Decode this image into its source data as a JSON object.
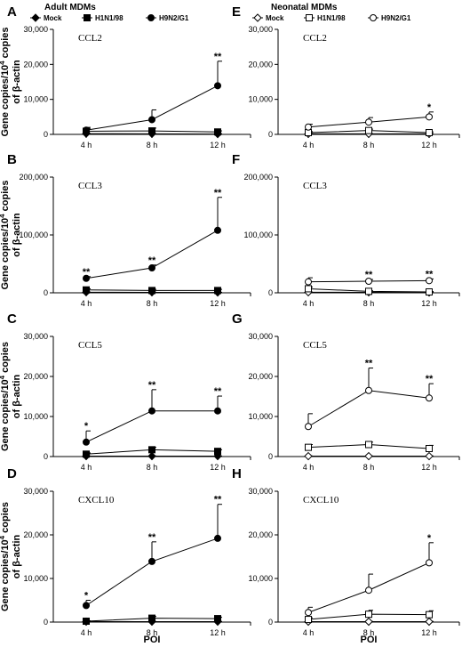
{
  "headers": {
    "left": "Adult MDMs",
    "right": "Neonatal MDMs"
  },
  "x_axis_label": "POI",
  "y_axis_label_main": "Gene copies/10",
  "y_axis_label_sup": "4",
  "y_axis_label_tail": " copies",
  "y_axis_label_line2": "of β-actin",
  "legend": {
    "items": [
      {
        "label": "Mock",
        "marker": "diamond"
      },
      {
        "label": "H1N1/98",
        "marker": "square"
      },
      {
        "label": "H9N2/G1",
        "marker": "circle"
      }
    ]
  },
  "chart_data": [
    {
      "panel": "A",
      "title": "CCL2",
      "group": "adult",
      "fill": "filled",
      "type": "line",
      "categories": [
        "4 h",
        "8 h",
        "12 h"
      ],
      "yticks": [
        "0",
        "10,000",
        "20,000",
        "30,000"
      ],
      "ylim": [
        0,
        30000
      ],
      "series": [
        {
          "name": "Mock",
          "values": [
            200,
            150,
            100
          ],
          "err": [
            100,
            100,
            100
          ]
        },
        {
          "name": "H1N1/98",
          "values": [
            900,
            1000,
            700
          ],
          "err": [
            700,
            800,
            300
          ]
        },
        {
          "name": "H9N2/G1",
          "values": [
            1200,
            4200,
            13900
          ],
          "err": [
            800,
            2800,
            7000
          ]
        }
      ],
      "annotations": [
        "",
        "",
        "**"
      ]
    },
    {
      "panel": "B",
      "title": "CCL3",
      "group": "adult",
      "fill": "filled",
      "type": "line",
      "categories": [
        "4 h",
        "8 h",
        "12 h"
      ],
      "yticks": [
        "0",
        "100,000",
        "200,000"
      ],
      "ylim": [
        0,
        200000
      ],
      "series": [
        {
          "name": "Mock",
          "values": [
            1000,
            800,
            600
          ],
          "err": [
            500,
            400,
            300
          ]
        },
        {
          "name": "H1N1/98",
          "values": [
            5000,
            4000,
            4000
          ],
          "err": [
            2000,
            2000,
            2000
          ]
        },
        {
          "name": "H9N2/G1",
          "values": [
            25000,
            43000,
            108000
          ],
          "err": [
            3000,
            5000,
            57000
          ]
        }
      ],
      "annotations": [
        "**",
        "**",
        "**"
      ]
    },
    {
      "panel": "C",
      "title": "CCL5",
      "group": "adult",
      "fill": "filled",
      "type": "line",
      "categories": [
        "4 h",
        "8 h",
        "12 h"
      ],
      "yticks": [
        "0",
        "10,000",
        "20,000",
        "30,000"
      ],
      "ylim": [
        0,
        30000
      ],
      "series": [
        {
          "name": "Mock",
          "values": [
            100,
            100,
            100
          ],
          "err": [
            50,
            50,
            50
          ]
        },
        {
          "name": "H1N1/98",
          "values": [
            600,
            1700,
            1300
          ],
          "err": [
            300,
            600,
            400
          ]
        },
        {
          "name": "H9N2/G1",
          "values": [
            3600,
            11400,
            11400
          ],
          "err": [
            2800,
            5300,
            3700
          ]
        }
      ],
      "annotations": [
        "*",
        "**",
        "**"
      ]
    },
    {
      "panel": "D",
      "title": "CXCL10",
      "group": "adult",
      "fill": "filled",
      "type": "line",
      "categories": [
        "4 h",
        "8 h",
        "12 h"
      ],
      "yticks": [
        "0",
        "10,000",
        "20,000",
        "30,000"
      ],
      "ylim": [
        0,
        30000
      ],
      "series": [
        {
          "name": "Mock",
          "values": [
            100,
            100,
            100
          ],
          "err": [
            50,
            50,
            50
          ]
        },
        {
          "name": "H1N1/98",
          "values": [
            200,
            900,
            800
          ],
          "err": [
            100,
            400,
            300
          ]
        },
        {
          "name": "H9N2/G1",
          "values": [
            3800,
            13900,
            19200
          ],
          "err": [
            1200,
            4500,
            7800
          ]
        }
      ],
      "annotations": [
        "*",
        "**",
        "**"
      ]
    },
    {
      "panel": "E",
      "title": "CCL2",
      "group": "neonatal",
      "fill": "open",
      "type": "line",
      "categories": [
        "4 h",
        "8 h",
        "12 h"
      ],
      "yticks": [
        "0",
        "10,000",
        "20,000",
        "30,000"
      ],
      "ylim": [
        0,
        30000
      ],
      "series": [
        {
          "name": "Mock",
          "values": [
            150,
            150,
            150
          ],
          "err": [
            50,
            50,
            50
          ]
        },
        {
          "name": "H1N1/98",
          "values": [
            500,
            1100,
            500
          ],
          "err": [
            300,
            400,
            200
          ]
        },
        {
          "name": "H9N2/G1",
          "values": [
            2100,
            3500,
            5000
          ],
          "err": [
            800,
            1300,
            1400
          ]
        }
      ],
      "annotations": [
        "",
        "",
        "*"
      ]
    },
    {
      "panel": "F",
      "title": "CCL3",
      "group": "neonatal",
      "fill": "open",
      "type": "line",
      "categories": [
        "4 h",
        "8 h",
        "12 h"
      ],
      "yticks": [
        "0",
        "100,000",
        "200,000"
      ],
      "ylim": [
        0,
        200000
      ],
      "series": [
        {
          "name": "Mock",
          "values": [
            1000,
            800,
            600
          ],
          "err": [
            400,
            300,
            300
          ]
        },
        {
          "name": "H1N1/98",
          "values": [
            7000,
            2500,
            1500
          ],
          "err": [
            3000,
            1000,
            800
          ]
        },
        {
          "name": "H9N2/G1",
          "values": [
            19000,
            20000,
            21000
          ],
          "err": [
            7000,
            3000,
            3000
          ]
        }
      ],
      "annotations": [
        "",
        "**",
        "**"
      ]
    },
    {
      "panel": "G",
      "title": "CCL5",
      "group": "neonatal",
      "fill": "open",
      "type": "line",
      "categories": [
        "4 h",
        "8 h",
        "12 h"
      ],
      "yticks": [
        "0",
        "10,000",
        "20,000",
        "30,000"
      ],
      "ylim": [
        0,
        30000
      ],
      "series": [
        {
          "name": "Mock",
          "values": [
            100,
            100,
            100
          ],
          "err": [
            50,
            50,
            50
          ]
        },
        {
          "name": "H1N1/98",
          "values": [
            2300,
            3000,
            2000
          ],
          "err": [
            700,
            600,
            800
          ]
        },
        {
          "name": "H9N2/G1",
          "values": [
            7500,
            16500,
            14600
          ],
          "err": [
            3200,
            5600,
            3600
          ]
        }
      ],
      "annotations": [
        "",
        "**",
        "**"
      ]
    },
    {
      "panel": "H",
      "title": "CXCL10",
      "group": "neonatal",
      "fill": "open",
      "type": "line",
      "categories": [
        "4 h",
        "8 h",
        "12 h"
      ],
      "yticks": [
        "0",
        "10,000",
        "20,000",
        "30,000"
      ],
      "ylim": [
        0,
        30000
      ],
      "series": [
        {
          "name": "Mock",
          "values": [
            100,
            100,
            100
          ],
          "err": [
            50,
            50,
            50
          ]
        },
        {
          "name": "H1N1/98",
          "values": [
            600,
            1800,
            1700
          ],
          "err": [
            400,
            900,
            900
          ]
        },
        {
          "name": "H9N2/G1",
          "values": [
            2200,
            7300,
            13600
          ],
          "err": [
            1200,
            3700,
            4600
          ]
        }
      ],
      "annotations": [
        "",
        "",
        "*"
      ]
    }
  ]
}
